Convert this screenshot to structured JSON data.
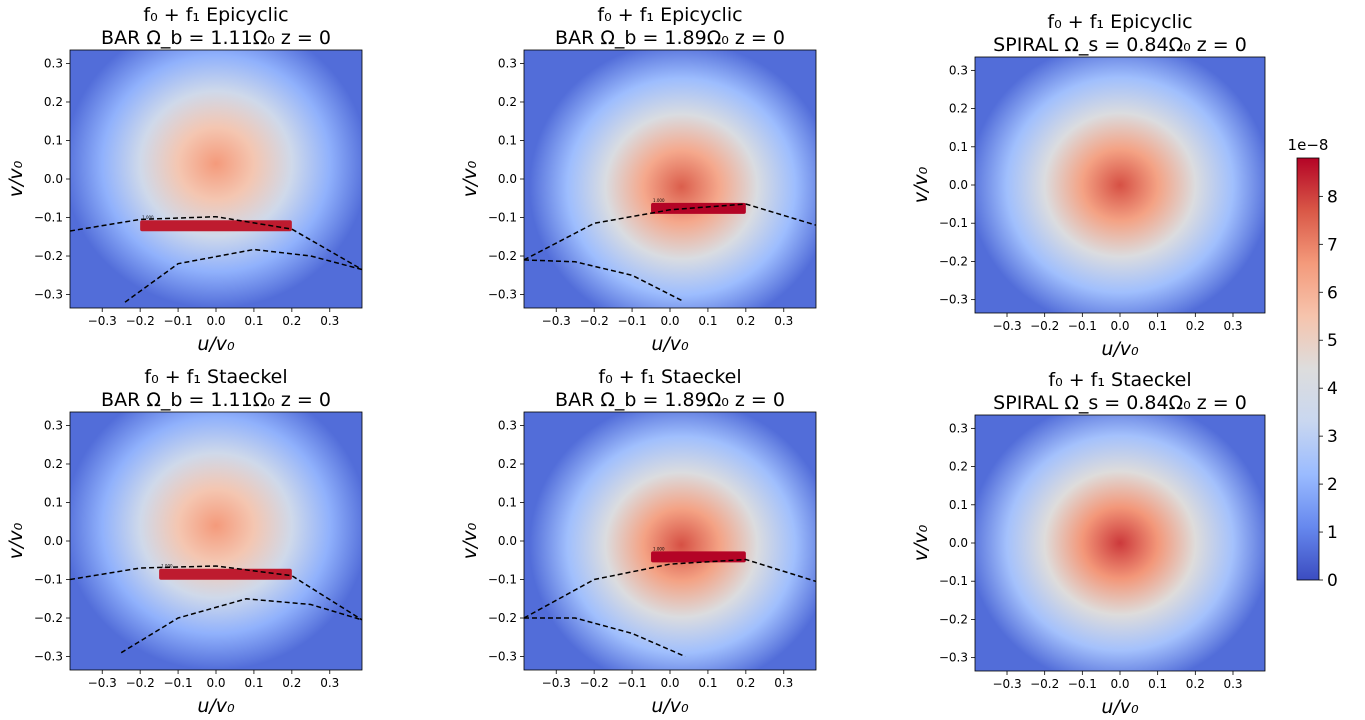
{
  "figure": {
    "colorbar": {
      "label": "1e−8",
      "ticks": [
        0,
        1,
        2,
        3,
        4,
        5,
        6,
        7,
        8
      ],
      "range": [
        0,
        8.8
      ],
      "colormap": "coolwarm",
      "colors": [
        "#3b4cc0",
        "#6688ee",
        "#9abbff",
        "#c9d7f0",
        "#dddddd",
        "#f6c4ad",
        "#f49a7b",
        "#d95847",
        "#b40426"
      ]
    }
  },
  "chart_data": [
    {
      "type": "heatmap",
      "title_line1": [
        "f₀ + f₁",
        "Epicyclic"
      ],
      "title_line2": [
        "BAR",
        "Ω_b = 1.11Ω₀",
        "z = 0"
      ],
      "xlabel": "u/v₀",
      "ylabel": "v/v₀",
      "xlim": [
        -0.385,
        0.385
      ],
      "ylim": [
        -0.335,
        0.335
      ],
      "x_ticks": [
        -0.3,
        -0.2,
        -0.1,
        0.0,
        0.1,
        0.2,
        0.3
      ],
      "y_ticks": [
        0.3,
        0.2,
        0.1,
        0.0,
        -0.1,
        -0.2,
        -0.3
      ],
      "peak": {
        "u": 0.0,
        "v": 0.04,
        "value": 6.6
      },
      "resonance_band": {
        "u_range": [
          -0.2,
          0.2
        ],
        "v": -0.12,
        "value": 8.5
      },
      "dashed_curves": [
        {
          "points": [
            [
              -0.385,
              -0.135
            ],
            [
              -0.2,
              -0.105
            ],
            [
              0.0,
              -0.098
            ],
            [
              0.2,
              -0.13
            ],
            [
              0.385,
              -0.235
            ]
          ]
        },
        {
          "points": [
            [
              -0.24,
              -0.32
            ],
            [
              -0.1,
              -0.22
            ],
            [
              0.1,
              -0.183
            ],
            [
              0.25,
              -0.2
            ],
            [
              0.385,
              -0.235
            ]
          ]
        }
      ],
      "contour_label": "1.000"
    },
    {
      "type": "heatmap",
      "title_line1": [
        "f₀ + f₁",
        "Epicyclic"
      ],
      "title_line2": [
        "BAR",
        "Ω_b = 1.89Ω₀",
        "z = 0"
      ],
      "xlabel": "u/v₀",
      "ylabel": "v/v₀",
      "xlim": [
        -0.385,
        0.385
      ],
      "ylim": [
        -0.335,
        0.335
      ],
      "x_ticks": [
        -0.3,
        -0.2,
        -0.1,
        0.0,
        0.1,
        0.2,
        0.3
      ],
      "y_ticks": [
        0.3,
        0.2,
        0.1,
        0.0,
        -0.1,
        -0.2,
        -0.3
      ],
      "peak": {
        "u": 0.03,
        "v": -0.02,
        "value": 7.6
      },
      "resonance_band": {
        "u_range": [
          -0.05,
          0.2
        ],
        "v": -0.075,
        "value": 8.8
      },
      "dashed_curves": [
        {
          "points": [
            [
              -0.385,
              -0.21
            ],
            [
              -0.2,
              -0.115
            ],
            [
              0.0,
              -0.08
            ],
            [
              0.2,
              -0.065
            ],
            [
              0.385,
              -0.12
            ]
          ]
        },
        {
          "points": [
            [
              -0.385,
              -0.21
            ],
            [
              -0.25,
              -0.215
            ],
            [
              -0.1,
              -0.25
            ],
            [
              0.03,
              -0.315
            ]
          ]
        }
      ],
      "contour_label": "1.000"
    },
    {
      "type": "heatmap",
      "title_line1": [
        "f₀ + f₁",
        "Epicyclic"
      ],
      "title_line2": [
        "SPIRAL",
        "Ω_s = 0.84Ω₀",
        "z = 0"
      ],
      "xlabel": "u/v₀",
      "ylabel": "v/v₀",
      "xlim": [
        -0.385,
        0.385
      ],
      "ylim": [
        -0.335,
        0.335
      ],
      "x_ticks": [
        -0.3,
        -0.2,
        -0.1,
        0.0,
        0.1,
        0.2,
        0.3
      ],
      "y_ticks": [
        0.3,
        0.2,
        0.1,
        0.0,
        -0.1,
        -0.2,
        -0.3
      ],
      "peak": {
        "u": 0.0,
        "v": 0.0,
        "value": 7.8
      },
      "resonance_band": null,
      "dashed_curves": [],
      "contour_label": ""
    },
    {
      "type": "heatmap",
      "title_line1": [
        "f₀ + f₁",
        "Staeckel"
      ],
      "title_line2": [
        "BAR",
        "Ω_b = 1.11Ω₀",
        "z = 0"
      ],
      "xlabel": "u/v₀",
      "ylabel": "v/v₀",
      "xlim": [
        -0.385,
        0.385
      ],
      "ylim": [
        -0.335,
        0.335
      ],
      "x_ticks": [
        -0.3,
        -0.2,
        -0.1,
        0.0,
        0.1,
        0.2,
        0.3
      ],
      "y_ticks": [
        0.3,
        0.2,
        0.1,
        0.0,
        -0.1,
        -0.2,
        -0.3
      ],
      "peak": {
        "u": 0.0,
        "v": 0.04,
        "value": 6.6
      },
      "resonance_band": {
        "u_range": [
          -0.15,
          0.2
        ],
        "v": -0.085,
        "value": 8.5
      },
      "dashed_curves": [
        {
          "points": [
            [
              -0.385,
              -0.1
            ],
            [
              -0.2,
              -0.07
            ],
            [
              0.0,
              -0.065
            ],
            [
              0.2,
              -0.09
            ],
            [
              0.385,
              -0.205
            ]
          ]
        },
        {
          "points": [
            [
              -0.25,
              -0.29
            ],
            [
              -0.1,
              -0.2
            ],
            [
              0.08,
              -0.15
            ],
            [
              0.25,
              -0.165
            ],
            [
              0.385,
              -0.205
            ]
          ]
        }
      ],
      "contour_label": "1.000"
    },
    {
      "type": "heatmap",
      "title_line1": [
        "f₀ + f₁",
        "Staeckel"
      ],
      "title_line2": [
        "BAR",
        "Ω_b = 1.89Ω₀",
        "z = 0"
      ],
      "xlabel": "u/v₀",
      "ylabel": "v/v₀",
      "xlim": [
        -0.385,
        0.385
      ],
      "ylim": [
        -0.335,
        0.335
      ],
      "x_ticks": [
        -0.3,
        -0.2,
        -0.1,
        0.0,
        0.1,
        0.2,
        0.3
      ],
      "y_ticks": [
        0.3,
        0.2,
        0.1,
        0.0,
        -0.1,
        -0.2,
        -0.3
      ],
      "peak": {
        "u": 0.03,
        "v": -0.01,
        "value": 7.8
      },
      "resonance_band": {
        "u_range": [
          -0.05,
          0.2
        ],
        "v": -0.04,
        "value": 8.8
      },
      "dashed_curves": [
        {
          "points": [
            [
              -0.385,
              -0.2
            ],
            [
              -0.2,
              -0.1
            ],
            [
              0.0,
              -0.06
            ],
            [
              0.2,
              -0.048
            ],
            [
              0.385,
              -0.105
            ]
          ]
        },
        {
          "points": [
            [
              -0.385,
              -0.2
            ],
            [
              -0.25,
              -0.2
            ],
            [
              -0.1,
              -0.24
            ],
            [
              0.04,
              -0.3
            ]
          ]
        }
      ],
      "contour_label": "1.000"
    },
    {
      "type": "heatmap",
      "title_line1": [
        "f₀ + f₁",
        "Staeckel"
      ],
      "title_line2": [
        "SPIRAL",
        "Ω_s = 0.84Ω₀",
        "z = 0"
      ],
      "xlabel": "u/v₀",
      "ylabel": "v/v₀",
      "xlim": [
        -0.385,
        0.385
      ],
      "ylim": [
        -0.335,
        0.335
      ],
      "x_ticks": [
        -0.3,
        -0.2,
        -0.1,
        0.0,
        0.1,
        0.2,
        0.3
      ],
      "y_ticks": [
        0.3,
        0.2,
        0.1,
        0.0,
        -0.1,
        -0.2,
        -0.3
      ],
      "peak": {
        "u": 0.0,
        "v": 0.0,
        "value": 8.1
      },
      "resonance_band": null,
      "dashed_curves": [],
      "contour_label": ""
    }
  ]
}
